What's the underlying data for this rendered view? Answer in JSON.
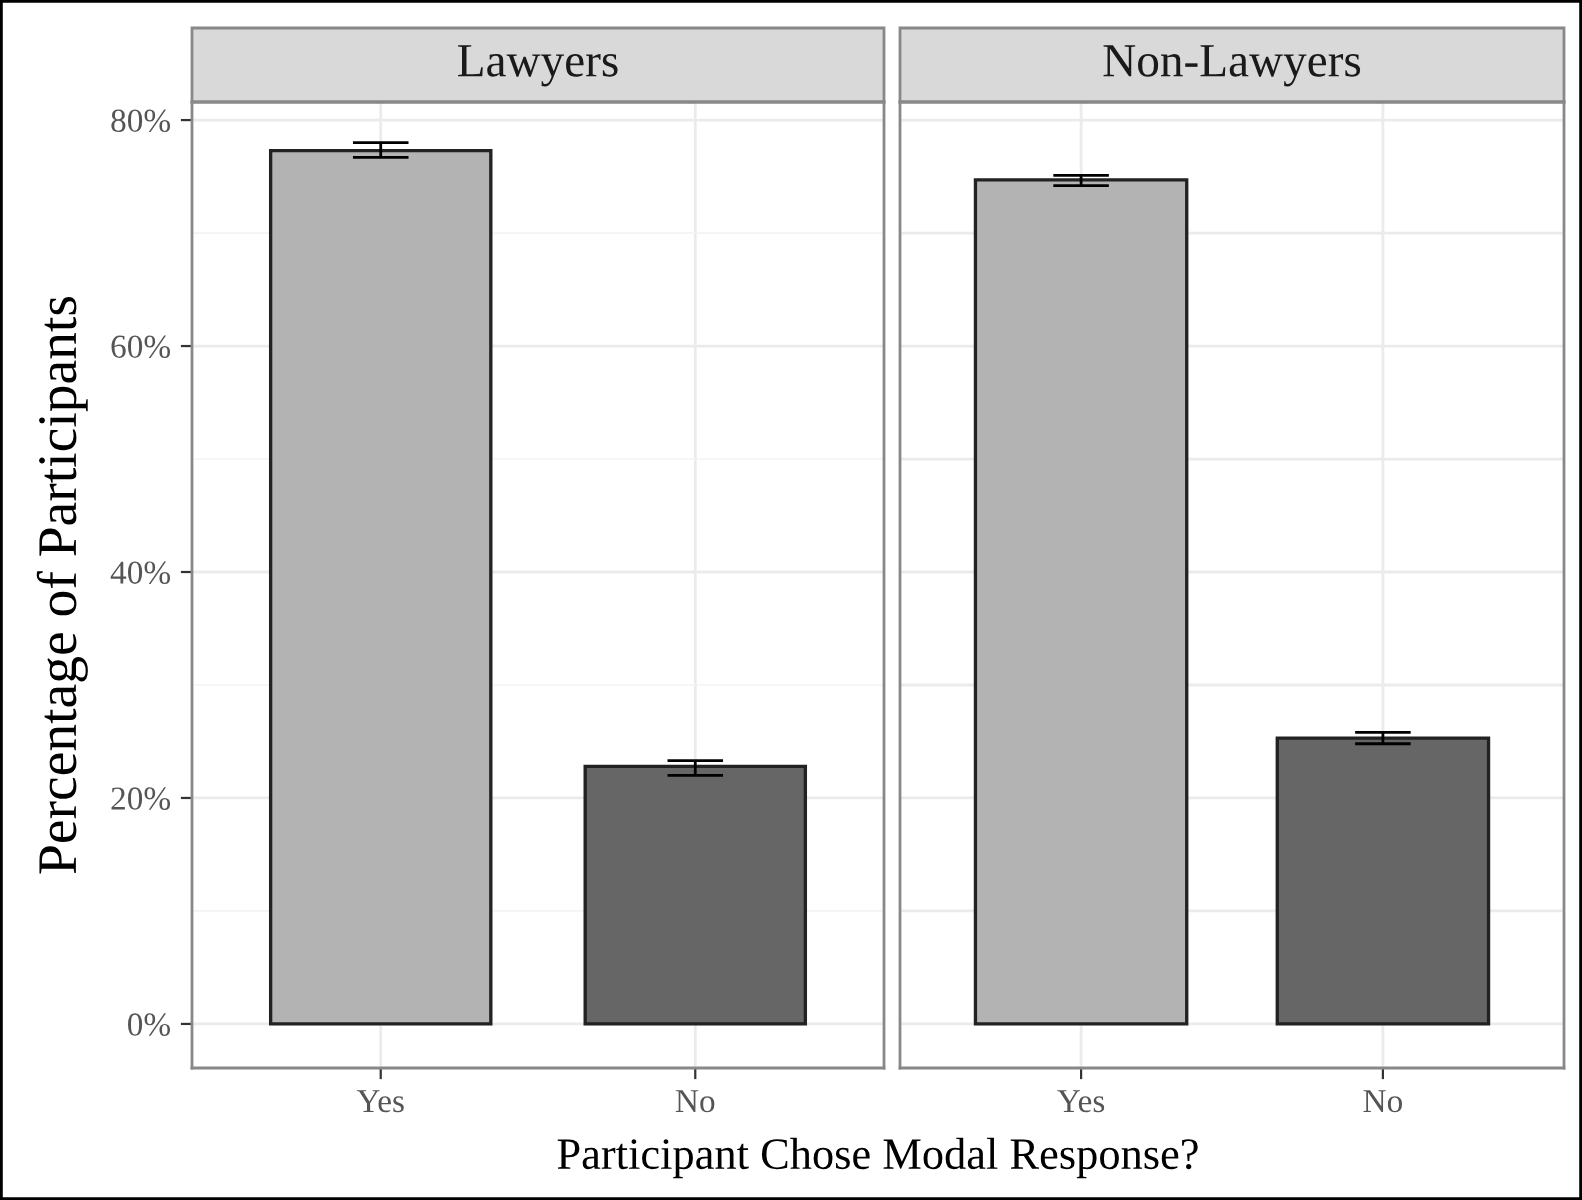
{
  "chart_data": [
    {
      "type": "bar",
      "title": "Lawyers",
      "ylabel": "Percentage of Participants",
      "xlabel": "Participant Chose Modal Response?",
      "categories": [
        "Yes",
        "No"
      ],
      "values": [
        77.3,
        22.8
      ],
      "colors": [
        "#b3b3b3",
        "#666666"
      ],
      "errors": [
        [
          76.7,
          78.0
        ],
        [
          22.0,
          23.3
        ]
      ],
      "ylim": [
        -3.9,
        81.6
      ],
      "yticks": [
        {
          "value": 0,
          "label": "0%"
        },
        {
          "value": 10,
          "label": null
        },
        {
          "value": 20,
          "label": "20%"
        },
        {
          "value": 30,
          "label": null
        },
        {
          "value": 40,
          "label": "40%"
        },
        {
          "value": 50,
          "label": null
        },
        {
          "value": 60,
          "label": "60%"
        },
        {
          "value": 70,
          "label": null
        },
        {
          "value": 80,
          "label": "80%"
        }
      ],
      "grid": true
    },
    {
      "type": "bar",
      "title": "Non-Lawyers",
      "categories": [
        "Yes",
        "No"
      ],
      "values": [
        74.7,
        25.3
      ],
      "colors": [
        "#b3b3b3",
        "#666666"
      ],
      "errors": [
        [
          74.2,
          75.1
        ],
        [
          24.8,
          25.8
        ]
      ],
      "ylim": [
        -3.9,
        81.6
      ],
      "yticks": [
        {
          "value": 0,
          "label": null
        },
        {
          "value": 10,
          "label": null
        },
        {
          "value": 20,
          "label": null
        },
        {
          "value": 30,
          "label": null
        },
        {
          "value": 40,
          "label": null
        },
        {
          "value": 50,
          "label": null
        },
        {
          "value": 60,
          "label": null
        },
        {
          "value": 70,
          "label": null
        },
        {
          "value": 80,
          "label": null
        }
      ],
      "grid": true,
      "tick_labels": "x"
    }
  ]
}
